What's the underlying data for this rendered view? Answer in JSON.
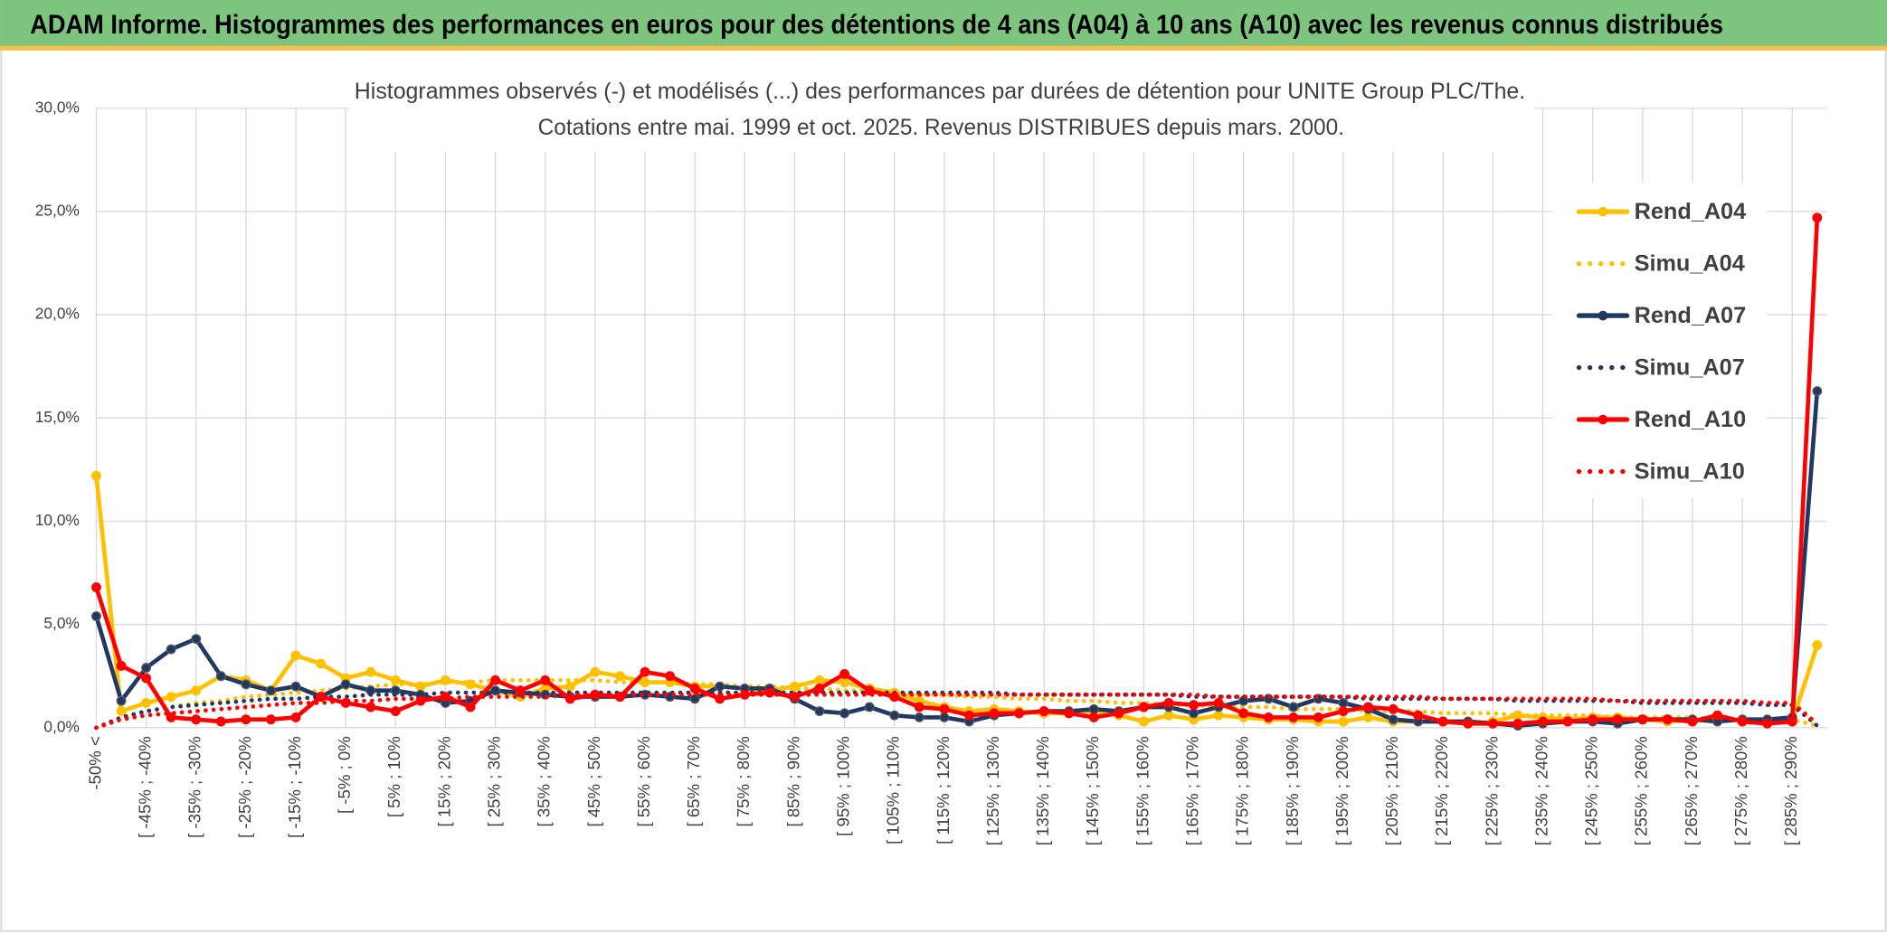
{
  "header": {
    "title": "ADAM Informe. Histogrammes des performances en euros pour des détentions de 4 ans (A04) à 10 ans (A10) avec les revenus connus distribués"
  },
  "chart_data": {
    "type": "line",
    "title": "Histogrammes observés (-) et modélisés (...) des performances par durées de détention pour UNITE Group PLC/The.",
    "subtitle": "Cotations entre mai. 1999 et oct. 2025. Revenus DISTRIBUES depuis mars. 2000.",
    "categories": [
      "-50% <",
      null,
      "[ -45% ; -40%",
      null,
      "[ -35% ; -30%",
      null,
      "[ -25% ; -20%",
      null,
      "[ -15% ; -10%",
      null,
      "[ -5% ; 0%",
      null,
      "[ 5% ; 10%",
      null,
      "[ 15% ; 20%",
      null,
      "[ 25% ; 30%",
      null,
      "[ 35% ; 40%",
      null,
      "[ 45% ; 50%",
      null,
      "[ 55% ; 60%",
      null,
      "[ 65% ; 70%",
      null,
      "[ 75% ; 80%",
      null,
      "[ 85% ; 90%",
      null,
      "[ 95% ; 100%",
      null,
      "[ 105% ; 110%",
      null,
      "[ 115% ; 120%",
      null,
      "[ 125% ; 130%",
      null,
      "[ 135% ; 140%",
      null,
      "[ 145% ; 150%",
      null,
      "[ 155% ; 160%",
      null,
      "[ 165% ; 170%",
      null,
      "[ 175% ; 180%",
      null,
      "[ 185% ; 190%",
      null,
      "[ 195% ; 200%",
      null,
      "[ 205% ; 210%",
      null,
      "[ 215% ; 220%",
      null,
      "[ 225% ; 230%",
      null,
      "[ 235% ; 240%",
      null,
      "[ 245% ; 250%",
      null,
      "[ 255% ; 260%",
      null,
      "[ 265% ; 270%",
      null,
      "[ 275% ; 280%",
      null,
      "[ 285% ; 290%",
      null
    ],
    "series": [
      {
        "name": "Rend_A04",
        "color": "#ffc000",
        "style": "solid",
        "values": [
          12.2,
          0.8,
          1.2,
          1.5,
          1.8,
          2.5,
          2.3,
          1.8,
          3.5,
          3.1,
          2.4,
          2.7,
          2.3,
          2.0,
          2.3,
          2.1,
          1.8,
          1.5,
          1.9,
          2.0,
          2.7,
          2.5,
          2.2,
          2.2,
          2.0,
          2.0,
          1.9,
          1.8,
          2.0,
          2.3,
          2.2,
          1.9,
          1.7,
          1.3,
          1.0,
          0.8,
          0.9,
          0.8,
          0.7,
          0.7,
          0.8,
          0.6,
          0.3,
          0.6,
          0.4,
          0.6,
          0.5,
          0.4,
          0.4,
          0.3,
          0.3,
          0.5,
          0.3,
          0.3,
          0.3,
          0.2,
          0.3,
          0.6,
          0.5,
          0.4,
          0.5,
          0.5,
          0.4,
          0.3,
          0.4,
          0.3,
          0.4,
          0.3,
          0.3,
          4.0
        ]
      },
      {
        "name": "Simu_A04",
        "color": "#ffc000",
        "style": "dotted",
        "values": [
          0.0,
          0.5,
          0.8,
          1.0,
          1.2,
          1.3,
          1.5,
          1.6,
          1.7,
          1.8,
          1.9,
          2.0,
          2.1,
          2.1,
          2.2,
          2.2,
          2.3,
          2.3,
          2.3,
          2.3,
          2.3,
          2.2,
          2.2,
          2.2,
          2.1,
          2.1,
          2.0,
          2.0,
          1.9,
          1.9,
          1.8,
          1.8,
          1.7,
          1.6,
          1.6,
          1.5,
          1.5,
          1.4,
          1.4,
          1.3,
          1.3,
          1.2,
          1.2,
          1.1,
          1.1,
          1.0,
          1.0,
          1.0,
          0.9,
          0.9,
          0.9,
          0.8,
          0.8,
          0.8,
          0.7,
          0.7,
          0.7,
          0.6,
          0.6,
          0.6,
          0.6,
          0.5,
          0.5,
          0.5,
          0.5,
          0.4,
          0.4,
          0.4,
          0.4,
          0.1
        ]
      },
      {
        "name": "Rend_A07",
        "color": "#1f3864",
        "style": "solid",
        "values": [
          5.4,
          1.3,
          2.9,
          3.8,
          4.3,
          2.5,
          2.1,
          1.8,
          2.0,
          1.5,
          2.1,
          1.8,
          1.8,
          1.6,
          1.2,
          1.3,
          1.8,
          1.7,
          1.6,
          1.5,
          1.5,
          1.5,
          1.6,
          1.5,
          1.4,
          2.0,
          1.9,
          1.9,
          1.4,
          0.8,
          0.7,
          1.0,
          0.6,
          0.5,
          0.5,
          0.3,
          0.6,
          0.7,
          0.8,
          0.8,
          0.9,
          0.8,
          1.0,
          1.0,
          0.7,
          1.0,
          1.3,
          1.4,
          1.0,
          1.4,
          1.2,
          0.9,
          0.4,
          0.3,
          0.3,
          0.3,
          0.2,
          0.1,
          0.2,
          0.3,
          0.3,
          0.2,
          0.4,
          0.4,
          0.4,
          0.3,
          0.4,
          0.4,
          0.5,
          16.3
        ]
      },
      {
        "name": "Simu_A07",
        "color": "#1f3864",
        "style": "dotted",
        "values": [
          0.0,
          0.5,
          0.8,
          1.0,
          1.1,
          1.2,
          1.3,
          1.4,
          1.4,
          1.5,
          1.5,
          1.6,
          1.6,
          1.6,
          1.7,
          1.7,
          1.7,
          1.7,
          1.7,
          1.7,
          1.7,
          1.7,
          1.7,
          1.7,
          1.7,
          1.7,
          1.7,
          1.7,
          1.7,
          1.7,
          1.7,
          1.7,
          1.7,
          1.7,
          1.7,
          1.7,
          1.7,
          1.6,
          1.6,
          1.6,
          1.6,
          1.6,
          1.6,
          1.6,
          1.5,
          1.5,
          1.5,
          1.5,
          1.5,
          1.5,
          1.5,
          1.4,
          1.4,
          1.4,
          1.4,
          1.4,
          1.4,
          1.3,
          1.3,
          1.3,
          1.3,
          1.3,
          1.2,
          1.2,
          1.2,
          1.2,
          1.2,
          1.1,
          1.1,
          0.1
        ]
      },
      {
        "name": "Rend_A10",
        "color": "#ff0000",
        "style": "solid",
        "values": [
          6.8,
          3.0,
          2.4,
          0.5,
          0.4,
          0.3,
          0.4,
          0.4,
          0.5,
          1.5,
          1.2,
          1.0,
          0.8,
          1.3,
          1.5,
          1.0,
          2.3,
          1.8,
          2.3,
          1.4,
          1.6,
          1.5,
          2.7,
          2.5,
          1.9,
          1.4,
          1.6,
          1.7,
          1.5,
          1.9,
          2.6,
          1.8,
          1.5,
          1.0,
          0.9,
          0.6,
          0.7,
          0.7,
          0.8,
          0.7,
          0.5,
          0.7,
          1.0,
          1.2,
          1.1,
          1.2,
          0.7,
          0.5,
          0.5,
          0.5,
          0.8,
          1.0,
          0.9,
          0.6,
          0.3,
          0.2,
          0.2,
          0.2,
          0.3,
          0.3,
          0.4,
          0.4,
          0.4,
          0.4,
          0.3,
          0.6,
          0.3,
          0.2,
          0.3,
          24.7
        ]
      },
      {
        "name": "Simu_A10",
        "color": "#ff0000",
        "style": "dotted",
        "values": [
          0.0,
          0.4,
          0.6,
          0.7,
          0.8,
          0.9,
          1.0,
          1.1,
          1.2,
          1.2,
          1.3,
          1.3,
          1.4,
          1.4,
          1.4,
          1.5,
          1.5,
          1.5,
          1.5,
          1.6,
          1.6,
          1.6,
          1.6,
          1.6,
          1.6,
          1.6,
          1.6,
          1.6,
          1.6,
          1.6,
          1.6,
          1.6,
          1.6,
          1.6,
          1.6,
          1.6,
          1.6,
          1.6,
          1.6,
          1.6,
          1.6,
          1.6,
          1.6,
          1.6,
          1.6,
          1.5,
          1.5,
          1.5,
          1.5,
          1.5,
          1.5,
          1.5,
          1.5,
          1.5,
          1.4,
          1.4,
          1.4,
          1.4,
          1.4,
          1.4,
          1.4,
          1.3,
          1.3,
          1.3,
          1.3,
          1.3,
          1.3,
          1.2,
          1.2,
          0.2
        ]
      }
    ],
    "ylim": [
      0,
      30
    ],
    "yticks": [
      {
        "value": 0,
        "label": "0,0%"
      },
      {
        "value": 5,
        "label": "5,0%"
      },
      {
        "value": 10,
        "label": "10,0%"
      },
      {
        "value": 15,
        "label": "15,0%"
      },
      {
        "value": 20,
        "label": "20,0%"
      },
      {
        "value": 25,
        "label": "25,0%"
      },
      {
        "value": 30,
        "label": "30,0%"
      }
    ],
    "grid": true,
    "legend": "right"
  }
}
